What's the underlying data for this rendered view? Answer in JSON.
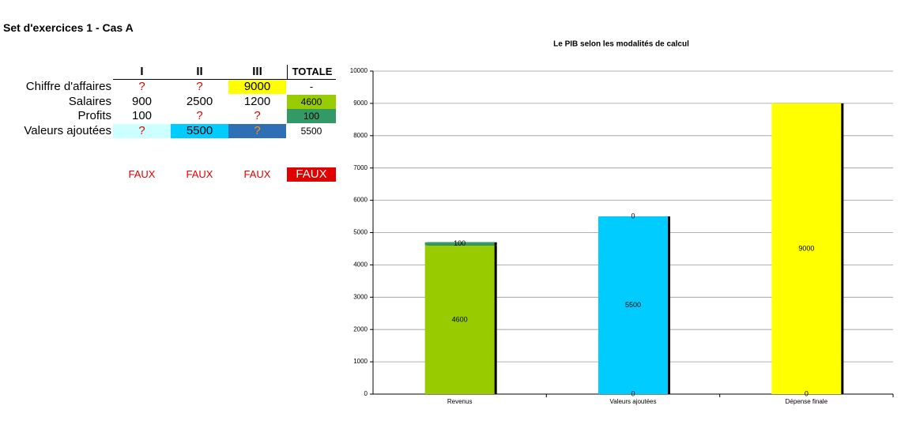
{
  "title": "Set d'exercices 1 - Cas A",
  "table": {
    "header": [
      "I",
      "II",
      "III",
      "TOTALE"
    ],
    "rows": [
      {
        "label": "Chiffre d'affaires",
        "cells": [
          "?",
          "?",
          "9000",
          "-"
        ]
      },
      {
        "label": "Salaires",
        "cells": [
          "900",
          "2500",
          "1200",
          "4600"
        ]
      },
      {
        "label": "Profits",
        "cells": [
          "100",
          "?",
          "?",
          "100"
        ]
      },
      {
        "label": "Valeurs ajoutées",
        "cells": [
          "?",
          "5500",
          "?",
          "5500"
        ]
      }
    ],
    "checks": [
      "FAUX",
      "FAUX",
      "FAUX",
      "FAUX"
    ]
  },
  "chart_data": {
    "type": "stacked_bar",
    "title": "Le PIB selon les modalités de calcul",
    "categories": [
      "Revenus",
      "Valeurs ajoutées",
      "Dépense finale"
    ],
    "series": [
      {
        "values": [
          4600,
          0,
          0
        ],
        "colors": [
          "#99cc00",
          "#00ccff",
          "#ffff00"
        ]
      },
      {
        "values": [
          100,
          5500,
          9000
        ],
        "colors": [
          "#339966",
          "#00ccff",
          "#ffff00"
        ]
      },
      {
        "values": [
          null,
          0,
          null
        ],
        "colors": [
          "#339966",
          "#00ccff",
          "#ffff00"
        ]
      }
    ],
    "ylim": [
      0,
      10000
    ],
    "yticks": [
      0,
      1000,
      2000,
      3000,
      4000,
      5000,
      6000,
      7000,
      8000,
      9000,
      10000
    ],
    "grid": true
  }
}
